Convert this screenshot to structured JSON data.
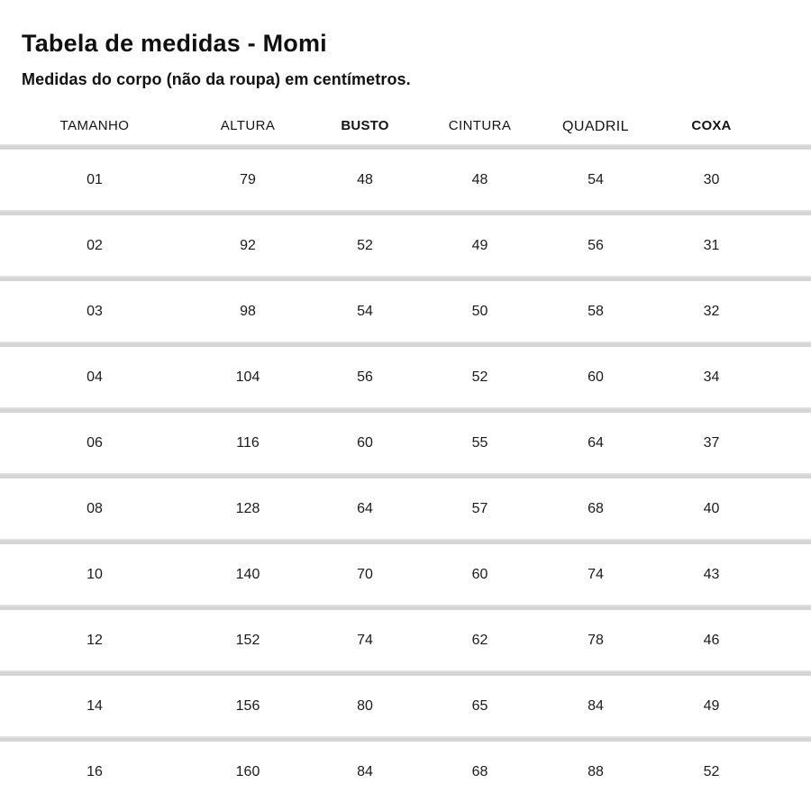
{
  "page": {
    "title": "Tabela de medidas - Momi",
    "subtitle": "Medidas do corpo (não da roupa) em centímetros."
  },
  "table": {
    "columns": [
      {
        "label": "TAMANHO",
        "bold": false
      },
      {
        "label": "ALTURA",
        "bold": false
      },
      {
        "label": "BUSTO",
        "bold": true
      },
      {
        "label": "CINTURA",
        "bold": false
      },
      {
        "label": "QUADRIL",
        "bold": false
      },
      {
        "label": "COXA",
        "bold": true
      }
    ],
    "rows": [
      [
        "01",
        "79",
        "48",
        "48",
        "54",
        "30"
      ],
      [
        "02",
        "92",
        "52",
        "49",
        "56",
        "31"
      ],
      [
        "03",
        "98",
        "54",
        "50",
        "58",
        "32"
      ],
      [
        "04",
        "104",
        "56",
        "52",
        "60",
        "34"
      ],
      [
        "06",
        "116",
        "60",
        "55",
        "64",
        "37"
      ],
      [
        "08",
        "128",
        "64",
        "57",
        "68",
        "40"
      ],
      [
        "10",
        "140",
        "70",
        "60",
        "74",
        "43"
      ],
      [
        "12",
        "152",
        "74",
        "62",
        "78",
        "46"
      ],
      [
        "14",
        "156",
        "80",
        "65",
        "84",
        "49"
      ],
      [
        "16",
        "160",
        "84",
        "68",
        "88",
        "52"
      ]
    ],
    "divider_color": "#d5d5d5",
    "text_color": "#1b1b1b",
    "background_color": "#ffffff"
  }
}
